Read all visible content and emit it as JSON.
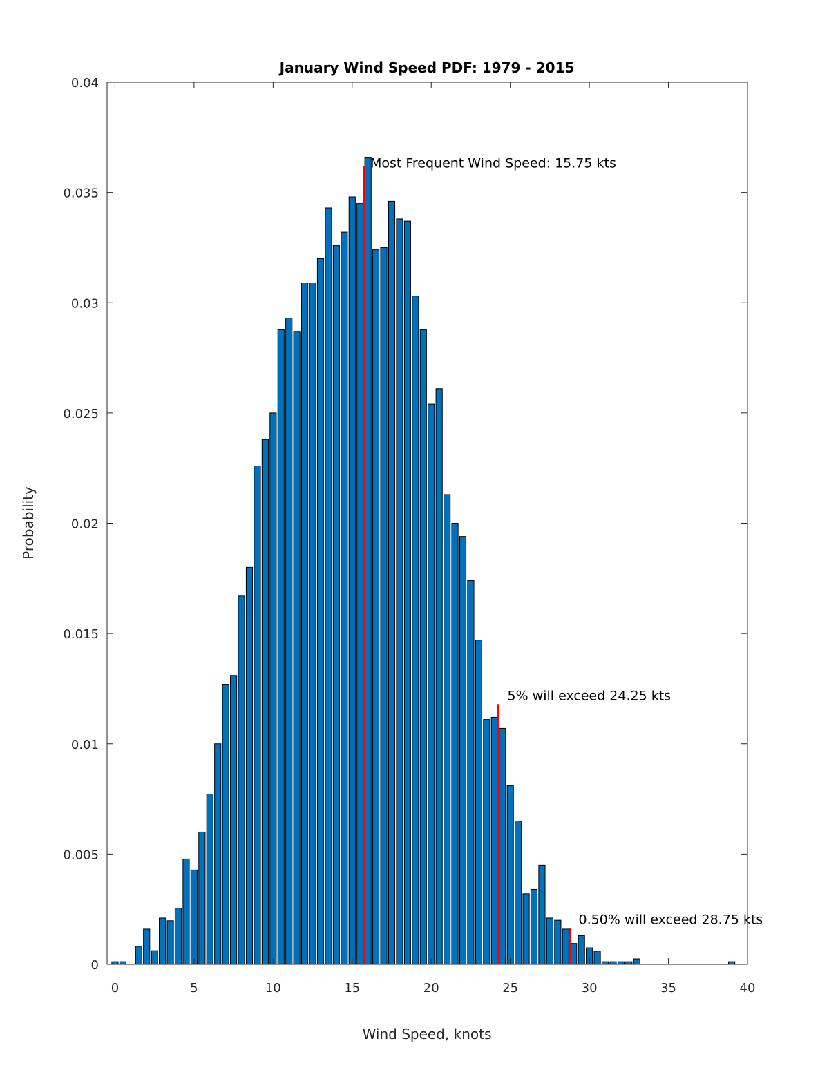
{
  "chart_data": {
    "type": "bar",
    "title": "January Wind Speed PDF: 1979 - 2015",
    "xlabel": "Wind Speed, knots",
    "ylabel": "Probability",
    "xlim": [
      -0.5,
      40
    ],
    "ylim": [
      0,
      0.04
    ],
    "xticks": [
      "0",
      "5",
      "10",
      "15",
      "20",
      "25",
      "30",
      "35",
      "40"
    ],
    "yticks": [
      "0",
      "0.005",
      "0.01",
      "0.015",
      "0.02",
      "0.025",
      "0.03",
      "0.035",
      "0.04"
    ],
    "bar_color": "#0072bd",
    "marker_color": "#ff0000",
    "x": [
      0,
      0.5,
      1,
      1.5,
      2,
      2.5,
      3,
      3.5,
      4,
      4.5,
      5,
      5.5,
      6,
      6.5,
      7,
      7.5,
      8,
      8.5,
      9,
      9.5,
      10,
      10.5,
      11,
      11.5,
      12,
      12.5,
      13,
      13.5,
      14,
      14.5,
      15,
      15.5,
      16,
      16.5,
      17,
      17.5,
      18,
      18.5,
      19,
      19.5,
      20,
      20.5,
      21,
      21.5,
      22,
      22.5,
      23,
      23.5,
      24,
      24.5,
      25,
      25.5,
      26,
      26.5,
      27,
      27.5,
      28,
      28.5,
      29,
      29.5,
      30,
      30.5,
      31,
      31.5,
      32,
      32.5,
      33,
      39
    ],
    "values": [
      0.00012,
      0.00012,
      0,
      0.00082,
      0.0016,
      0.00062,
      0.0021,
      0.00198,
      0.00255,
      0.00478,
      0.00428,
      0.006,
      0.00772,
      0.01,
      0.0127,
      0.0131,
      0.0167,
      0.018,
      0.0226,
      0.0238,
      0.025,
      0.0288,
      0.0293,
      0.0287,
      0.0309,
      0.0309,
      0.032,
      0.0343,
      0.0326,
      0.0332,
      0.0348,
      0.0345,
      0.0366,
      0.0324,
      0.0325,
      0.0346,
      0.0338,
      0.0337,
      0.0303,
      0.0288,
      0.0254,
      0.0261,
      0.0213,
      0.02,
      0.0194,
      0.0174,
      0.0147,
      0.0111,
      0.0112,
      0.0107,
      0.0081,
      0.0065,
      0.0032,
      0.0034,
      0.0045,
      0.0021,
      0.002,
      0.0016,
      0.00095,
      0.0013,
      0.00075,
      0.0006,
      0.00012,
      0.00012,
      0.00012,
      0.00012,
      0.00025,
      0.00012
    ],
    "markers": [
      {
        "x": 15.75,
        "y": 0.0362,
        "label": "Most Frequent Wind Speed: 15.75 kts"
      },
      {
        "x": 24.25,
        "y": 0.0118,
        "label": "5% will exceed 24.25 kts"
      },
      {
        "x": 28.75,
        "y": 0.00165,
        "label": "0.50% will exceed 28.75 kts"
      }
    ]
  }
}
